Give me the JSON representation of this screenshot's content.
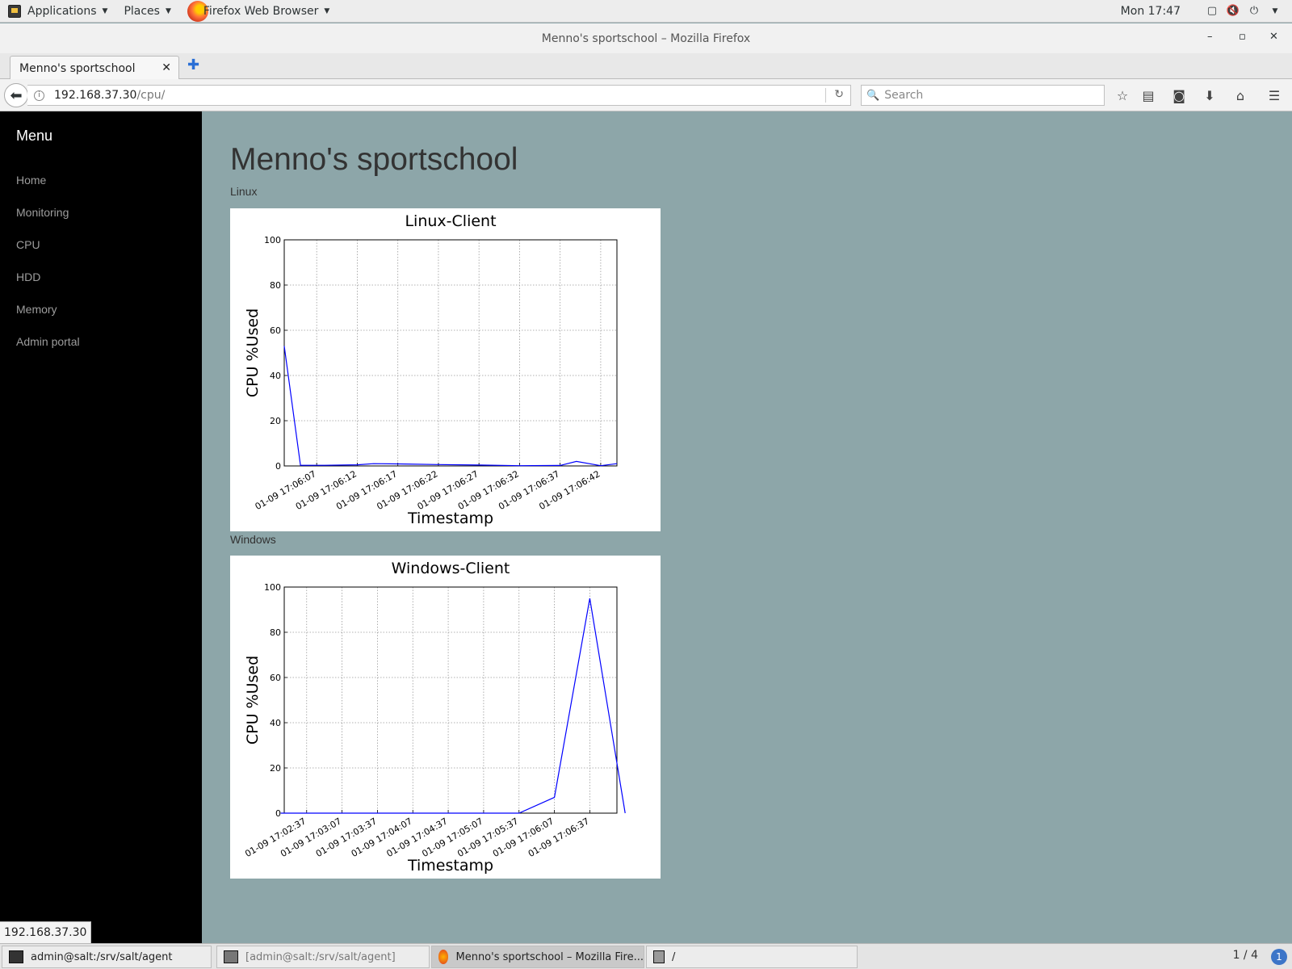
{
  "top_panel": {
    "applications": "Applications",
    "places": "Places",
    "active_app": "Firefox Web Browser",
    "clock": "Mon 17:47"
  },
  "window": {
    "title": "Menno's sportschool – Mozilla Firefox",
    "minimize": "–",
    "maximize": "▫",
    "close": "✕"
  },
  "browser": {
    "tab_title": "Menno's sportschool",
    "url_host": "192.168.37.30",
    "url_path": "/cpu/",
    "search_placeholder": "Search",
    "status_link": "192.168.37.30"
  },
  "sidebar": {
    "title": "Menu",
    "items": [
      {
        "label": "Home"
      },
      {
        "label": "Monitoring"
      },
      {
        "label": "CPU"
      },
      {
        "label": "HDD"
      },
      {
        "label": "Memory"
      },
      {
        "label": "Admin portal"
      }
    ]
  },
  "main": {
    "page_title": "Menno's sportschool",
    "sections": [
      {
        "label": "Linux"
      },
      {
        "label": "Windows"
      }
    ]
  },
  "chart_data": [
    {
      "type": "line",
      "title": "Linux-Client",
      "xlabel": "Timestamp",
      "ylabel": "CPU %Used",
      "ylim": [
        0,
        100
      ],
      "yticks": [
        0,
        20,
        40,
        60,
        80,
        100
      ],
      "grid": true,
      "color": "#0000ff",
      "x": [
        "01-09 17:06:03",
        "01-09 17:06:05",
        "01-09 17:06:08",
        "01-09 17:06:12",
        "01-09 17:06:14",
        "01-09 17:06:17",
        "01-09 17:06:22",
        "01-09 17:06:27",
        "01-09 17:06:32",
        "01-09 17:06:37",
        "01-09 17:06:39",
        "01-09 17:06:42",
        "01-09 17:06:44"
      ],
      "x_seconds": [
        3,
        5,
        8,
        12,
        14,
        17,
        22,
        27,
        32,
        37,
        39,
        42,
        44
      ],
      "values": [
        53,
        0.3,
        0.3,
        0.5,
        1.0,
        0.9,
        0.6,
        0.4,
        0.1,
        0.2,
        2.0,
        0.1,
        1.0
      ],
      "tick_labels": [
        "01-09 17:06:07",
        "01-09 17:06:12",
        "01-09 17:06:17",
        "01-09 17:06:22",
        "01-09 17:06:27",
        "01-09 17:06:32",
        "01-09 17:06:37",
        "01-09 17:06:42"
      ],
      "tick_seconds": [
        7,
        12,
        17,
        22,
        27,
        32,
        37,
        42
      ],
      "xlim_seconds": [
        3,
        44
      ]
    },
    {
      "type": "line",
      "title": "Windows-Client",
      "xlabel": "Timestamp",
      "ylabel": "CPU %Used",
      "ylim": [
        0,
        100
      ],
      "yticks": [
        0,
        20,
        40,
        60,
        80,
        100
      ],
      "grid": true,
      "color": "#0000ff",
      "x": [
        "01-09 17:02:15",
        "01-09 17:02:37",
        "01-09 17:03:07",
        "01-09 17:03:37",
        "01-09 17:04:07",
        "01-09 17:04:37",
        "01-09 17:05:07",
        "01-09 17:05:37",
        "01-09 17:06:07",
        "01-09 17:06:37",
        "01-09 17:07:07"
      ],
      "x_seconds": [
        135,
        157,
        187,
        217,
        247,
        277,
        307,
        337,
        367,
        397,
        427
      ],
      "values": [
        0,
        0,
        0,
        0,
        0,
        0,
        0,
        0,
        7,
        95,
        0
      ],
      "tick_labels": [
        "01-09 17:02:37",
        "01-09 17:03:07",
        "01-09 17:03:37",
        "01-09 17:04:07",
        "01-09 17:04:37",
        "01-09 17:05:07",
        "01-09 17:05:37",
        "01-09 17:06:07",
        "01-09 17:06:37"
      ],
      "tick_seconds": [
        157,
        187,
        217,
        247,
        277,
        307,
        337,
        367,
        397
      ],
      "xlim_seconds": [
        138,
        420
      ]
    }
  ],
  "taskbar": {
    "tasks": [
      {
        "label": "admin@salt:/srv/salt/agent"
      },
      {
        "label": "[admin@salt:/srv/salt/agent]"
      },
      {
        "label": "Menno's sportschool – Mozilla Fire..."
      },
      {
        "label": "/"
      }
    ],
    "workspace": "1 / 4",
    "notifications": "1"
  }
}
